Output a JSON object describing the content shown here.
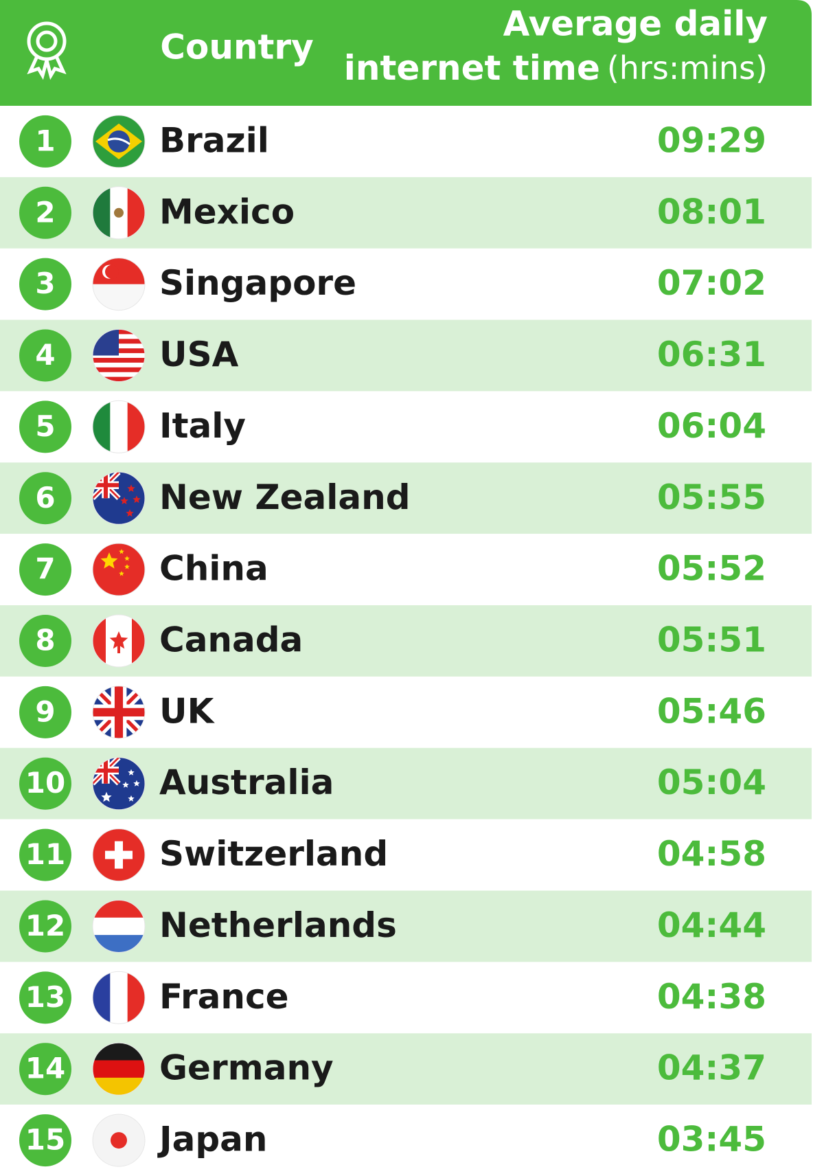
{
  "header": {
    "country": "Country",
    "time_line1": "Average daily",
    "time_line2": "internet time",
    "time_unit": "(hrs:mins)"
  },
  "rows": [
    {
      "rank": 1,
      "country": "Brazil",
      "time": "09:29"
    },
    {
      "rank": 2,
      "country": "Mexico",
      "time": "08:01"
    },
    {
      "rank": 3,
      "country": "Singapore",
      "time": "07:02"
    },
    {
      "rank": 4,
      "country": "USA",
      "time": "06:31"
    },
    {
      "rank": 5,
      "country": "Italy",
      "time": "06:04"
    },
    {
      "rank": 6,
      "country": "New Zealand",
      "time": "05:55"
    },
    {
      "rank": 7,
      "country": "China",
      "time": "05:52"
    },
    {
      "rank": 8,
      "country": "Canada",
      "time": "05:51"
    },
    {
      "rank": 9,
      "country": "UK",
      "time": "05:46"
    },
    {
      "rank": 10,
      "country": "Australia",
      "time": "05:04"
    },
    {
      "rank": 11,
      "country": "Switzerland",
      "time": "04:58"
    },
    {
      "rank": 12,
      "country": "Netherlands",
      "time": "04:44"
    },
    {
      "rank": 13,
      "country": "France",
      "time": "04:38"
    },
    {
      "rank": 14,
      "country": "Germany",
      "time": "04:37"
    },
    {
      "rank": 15,
      "country": "Japan",
      "time": "03:45"
    }
  ]
}
